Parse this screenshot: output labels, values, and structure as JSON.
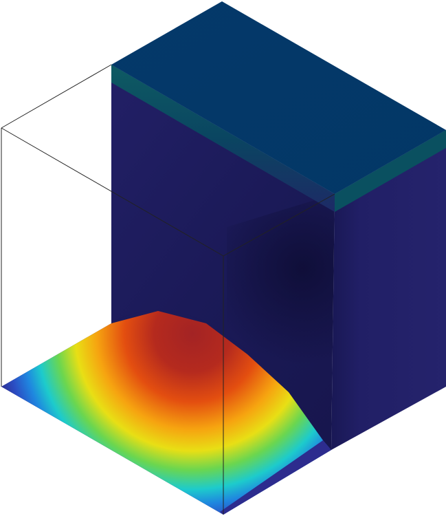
{
  "scene": {
    "type": "3d-simulation-render",
    "view": "isometric",
    "colormap": "jet",
    "colormap_stops": [
      "#3b3fb8",
      "#1e64d8",
      "#17c7d6",
      "#54d34a",
      "#e6dc14",
      "#f39a12",
      "#e34d10",
      "#a8201f"
    ],
    "bottom_face_color": "#1f1f78",
    "side_face_color": "#22206a",
    "top_face_color": "#043868",
    "top_edge_band_color": "#0f5a64",
    "wireframe_color": "#222222"
  }
}
